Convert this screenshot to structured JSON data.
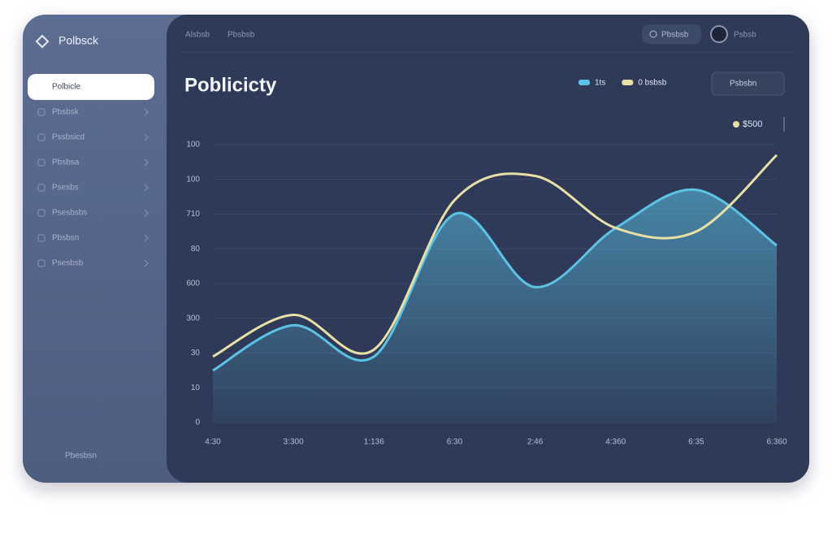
{
  "sidebar": {
    "brand": "Polbsck",
    "items": [
      "Polbicle",
      "Pbsbsk",
      "Pssbsicd",
      "Pbsbsa",
      "Psesbs",
      "Psesbsbs",
      "Pbsbsn",
      "Psesbsb"
    ],
    "footer": "Pbesbsn"
  },
  "header": {
    "nav": [
      "Alsbsb",
      "Pbsbsb"
    ],
    "search": "Pbsbsb",
    "user": "Psbsb"
  },
  "toolbar": {
    "button": "Psbsbn",
    "tag": "$500"
  },
  "chart_data": {
    "type": "line",
    "title": "Poblicicty",
    "categories": [
      "4:30",
      "3:300",
      "1:136",
      "6:30",
      "2:46",
      "4:360",
      "6:35",
      "6:360"
    ],
    "series": [
      {
        "name": "1ts",
        "color": "#5cc3e6",
        "area": true,
        "values": [
          1.5,
          2.8,
          1.9,
          6.0,
          3.9,
          5.6,
          6.7,
          5.1
        ]
      },
      {
        "name": "0 bsbsb",
        "color": "#e9e0a8",
        "area": false,
        "values": [
          1.9,
          3.1,
          2.1,
          6.4,
          7.1,
          5.6,
          5.5,
          7.7
        ]
      }
    ],
    "ylim": [
      0,
      8
    ],
    "yticks": [
      0,
      {
        "value": 1,
        "label": "10"
      },
      {
        "value": 2,
        "label": "30"
      },
      {
        "value": 3,
        "label": "300"
      },
      {
        "value": 4,
        "label": "600"
      },
      {
        "value": 5,
        "label": "80"
      },
      {
        "value": 6,
        "label": "710"
      },
      {
        "value": 7,
        "label": "100"
      },
      {
        "value": 8,
        "label": "100"
      }
    ],
    "grid": true
  }
}
